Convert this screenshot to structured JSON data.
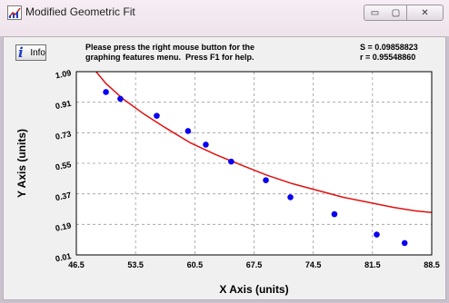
{
  "window": {
    "title": "Modified Geometric Fit",
    "buttons": {
      "minimize": "▭",
      "maximize": "▢",
      "close": "✕"
    }
  },
  "toolbar": {
    "info_label": "Info"
  },
  "instructions": {
    "line1": "Please press the right mouse button for the",
    "line2": "graphing features menu.  Press F1 for help."
  },
  "stats": {
    "s": "S = 0.09858823",
    "r": "r = 0.95548860"
  },
  "colors": {
    "points": "#0b00f0",
    "curve": "#e01010",
    "grid": "#9a9a9a"
  },
  "chart_data": {
    "type": "scatter",
    "xlabel": "X Axis (units)",
    "ylabel": "Y Axis (units)",
    "xlim": [
      46.5,
      88.5
    ],
    "ylim": [
      0.01,
      1.09
    ],
    "xticks": [
      "46.5",
      "53.5",
      "60.5",
      "67.5",
      "74.5",
      "81.5",
      "88.5"
    ],
    "yticks": [
      "0.01",
      "0.19",
      "0.37",
      "0.55",
      "0.73",
      "0.91",
      "1.09"
    ],
    "grid": true,
    "series": [
      {
        "kind": "points",
        "x": [
          50.0,
          51.7,
          56.0,
          59.7,
          61.8,
          64.8,
          68.9,
          71.8,
          77.0,
          82.0,
          85.3
        ],
        "y": [
          0.97,
          0.93,
          0.83,
          0.74,
          0.66,
          0.56,
          0.45,
          0.35,
          0.25,
          0.13,
          0.08
        ]
      },
      {
        "kind": "fit-curve",
        "x": [
          48.5,
          50.0,
          52.0,
          54.5,
          57.0,
          60.0,
          63.0,
          66.0,
          69.0,
          72.0,
          75.0,
          78.0,
          81.0,
          84.0,
          86.5,
          88.5
        ],
        "y": [
          1.11,
          1.02,
          0.93,
          0.84,
          0.76,
          0.67,
          0.6,
          0.54,
          0.48,
          0.43,
          0.39,
          0.35,
          0.32,
          0.29,
          0.27,
          0.26
        ]
      }
    ]
  }
}
